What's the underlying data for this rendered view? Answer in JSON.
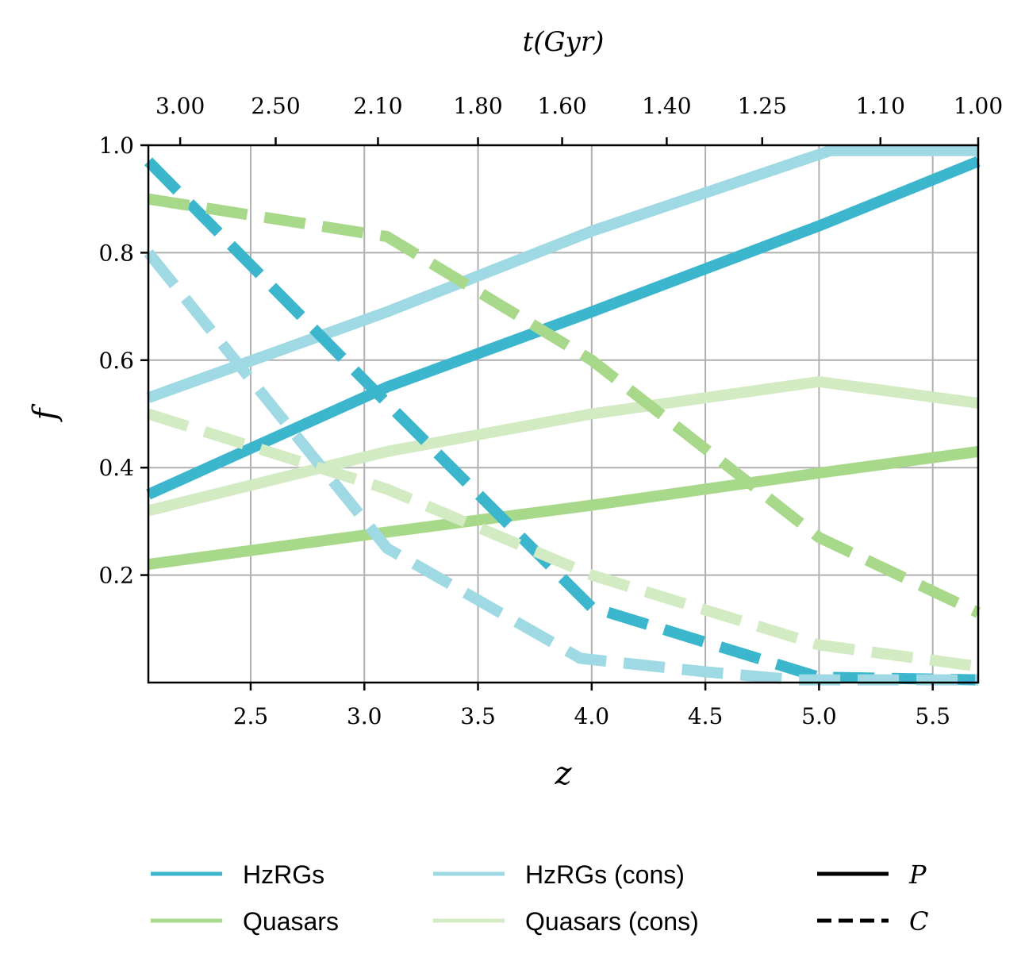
{
  "chart_data": {
    "type": "line",
    "title": "",
    "xlabel": "z",
    "ylabel": "f",
    "top_xlabel": "t(Gyr)",
    "xlim": [
      2.05,
      5.7
    ],
    "ylim": [
      0.0,
      1.0
    ],
    "grid": true,
    "x_ticks": [
      2.5,
      3.0,
      3.5,
      4.0,
      4.5,
      5.0,
      5.5
    ],
    "x_tick_labels": [
      "2.5",
      "3.0",
      "3.5",
      "4.0",
      "4.5",
      "5.0",
      "5.5"
    ],
    "y_ticks": [
      0.2,
      0.4,
      0.6,
      0.8,
      1.0
    ],
    "y_tick_labels": [
      "0.2",
      "0.4",
      "0.6",
      "0.8",
      "1.0"
    ],
    "top_ticks_z": [
      2.19,
      2.61,
      3.06,
      3.5,
      3.87,
      4.33,
      4.75,
      5.27,
      5.7
    ],
    "top_tick_labels": [
      "3.00",
      "2.50",
      "2.10",
      "1.80",
      "1.60",
      "1.40",
      "1.25",
      "1.10",
      "1.00"
    ],
    "series": [
      {
        "name": "HzRGs",
        "measure": "P",
        "style": "solid",
        "color": "#3bb6cc",
        "opacity": 1.0,
        "width": 14,
        "x": [
          2.05,
          3.1,
          4.0,
          5.0,
          5.7
        ],
        "y": [
          0.35,
          0.55,
          0.69,
          0.85,
          0.97
        ]
      },
      {
        "name": "Quasars",
        "measure": "P",
        "style": "solid",
        "color": "#a8d88a",
        "opacity": 1.0,
        "width": 14,
        "x": [
          2.05,
          3.1,
          4.0,
          5.0,
          5.7
        ],
        "y": [
          0.22,
          0.28,
          0.33,
          0.39,
          0.43
        ]
      },
      {
        "name": "HzRGs (cons)",
        "measure": "P",
        "style": "solid",
        "color": "#9fd9e4",
        "opacity": 1.0,
        "width": 14,
        "x": [
          2.05,
          3.1,
          4.0,
          5.05,
          5.7
        ],
        "y": [
          0.53,
          0.69,
          0.84,
          0.99,
          0.99
        ]
      },
      {
        "name": "Quasars (cons)",
        "measure": "P",
        "style": "solid",
        "color": "#d3ebc3",
        "opacity": 1.0,
        "width": 14,
        "x": [
          2.05,
          3.1,
          4.0,
          5.0,
          5.7
        ],
        "y": [
          0.32,
          0.43,
          0.5,
          0.56,
          0.52
        ]
      },
      {
        "name": "HzRGs",
        "measure": "C",
        "style": "dashed",
        "color": "#3bb6cc",
        "opacity": 1.0,
        "width": 14,
        "x": [
          2.05,
          3.1,
          4.0,
          5.0,
          5.7
        ],
        "y": [
          0.97,
          0.52,
          0.14,
          0.01,
          0.005
        ]
      },
      {
        "name": "Quasars",
        "measure": "C",
        "style": "dashed",
        "color": "#a8d88a",
        "opacity": 1.0,
        "width": 14,
        "x": [
          2.05,
          3.1,
          4.0,
          5.0,
          5.7
        ],
        "y": [
          0.9,
          0.83,
          0.6,
          0.27,
          0.13
        ]
      },
      {
        "name": "HzRGs (cons)",
        "measure": "C",
        "style": "dashed",
        "color": "#9fd9e4",
        "opacity": 1.0,
        "width": 14,
        "x": [
          2.05,
          3.1,
          3.95,
          4.5,
          4.9,
          5.7
        ],
        "y": [
          0.8,
          0.25,
          0.045,
          0.02,
          0.005,
          0.005
        ]
      },
      {
        "name": "Quasars (cons)",
        "measure": "C",
        "style": "dashed",
        "color": "#d3ebc3",
        "opacity": 1.0,
        "width": 14,
        "x": [
          2.05,
          3.1,
          4.0,
          5.0,
          5.7
        ],
        "y": [
          0.5,
          0.36,
          0.2,
          0.07,
          0.03
        ]
      }
    ],
    "legend": {
      "placement": "below",
      "entries": [
        {
          "label": "HzRGs",
          "color": "#3bb6cc",
          "style": "solid"
        },
        {
          "label": "Quasars",
          "color": "#a8d88a",
          "style": "solid"
        },
        {
          "label": "HzRGs (cons)",
          "color": "#9fd9e4",
          "style": "solid"
        },
        {
          "label": "Quasars (cons)",
          "color": "#d3ebc3",
          "style": "solid"
        },
        {
          "label": "P",
          "color": "#000000",
          "style": "solid",
          "math": true
        },
        {
          "label": "C",
          "color": "#000000",
          "style": "dashed",
          "math": true
        }
      ]
    }
  }
}
